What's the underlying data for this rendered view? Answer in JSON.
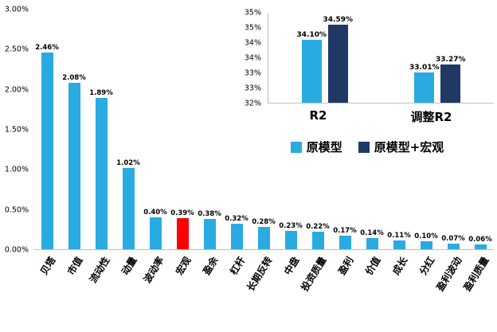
{
  "figure": {
    "background": "#ffffff",
    "axis_line_color": "#bfbfbf"
  },
  "chart_data": [
    {
      "id": "factor-importance",
      "type": "bar",
      "title": "",
      "categories": [
        "贝塔",
        "市值",
        "流动性",
        "动量",
        "波动率",
        "宏观",
        "盈余",
        "杠杆",
        "长期反转",
        "中盘",
        "投资质量",
        "盈利",
        "价值",
        "成长",
        "分红",
        "盈利波动",
        "盈利质量"
      ],
      "values": [
        2.46,
        2.08,
        1.89,
        1.02,
        0.4,
        0.39,
        0.38,
        0.32,
        0.28,
        0.23,
        0.22,
        0.17,
        0.14,
        0.11,
        0.1,
        0.07,
        0.06
      ],
      "value_labels": [
        "2.46%",
        "2.08%",
        "1.89%",
        "1.02%",
        "0.40%",
        "0.39%",
        "0.38%",
        "0.32%",
        "0.28%",
        "0.23%",
        "0.22%",
        "0.17%",
        "0.14%",
        "0.11%",
        "0.10%",
        "0.07%",
        "0.06%"
      ],
      "bar_color": "#29abe2",
      "highlight_index": 5,
      "highlight_color": "#ff0000",
      "ylim": [
        0,
        3
      ],
      "yticks_bottom_up": [
        "0.00%",
        "0.50%",
        "1.00%",
        "1.50%",
        "2.00%",
        "2.50%",
        "3.00%"
      ],
      "grid": false,
      "legend_position": "none",
      "xlabel": "",
      "ylabel": ""
    },
    {
      "id": "r2-comparison",
      "type": "bar",
      "title": "",
      "categories": [
        "R2",
        "调整R2"
      ],
      "series": [
        {
          "name": "原模型",
          "color": "#29abe2",
          "values": [
            34.1,
            33.01
          ],
          "value_labels": [
            "34.10%",
            "33.01%"
          ]
        },
        {
          "name": "原模型+宏观",
          "color": "#1f3864",
          "values": [
            34.59,
            33.27
          ],
          "value_labels": [
            "34.59%",
            "33.27%"
          ]
        }
      ],
      "ylim": [
        32,
        35
      ],
      "yticks_bottom_up": [
        "32%",
        "33%",
        "33%",
        "34%",
        "34%",
        "35%",
        "35%"
      ],
      "grid": false,
      "legend_position": "bottom",
      "xlabel": "",
      "ylabel": ""
    }
  ]
}
